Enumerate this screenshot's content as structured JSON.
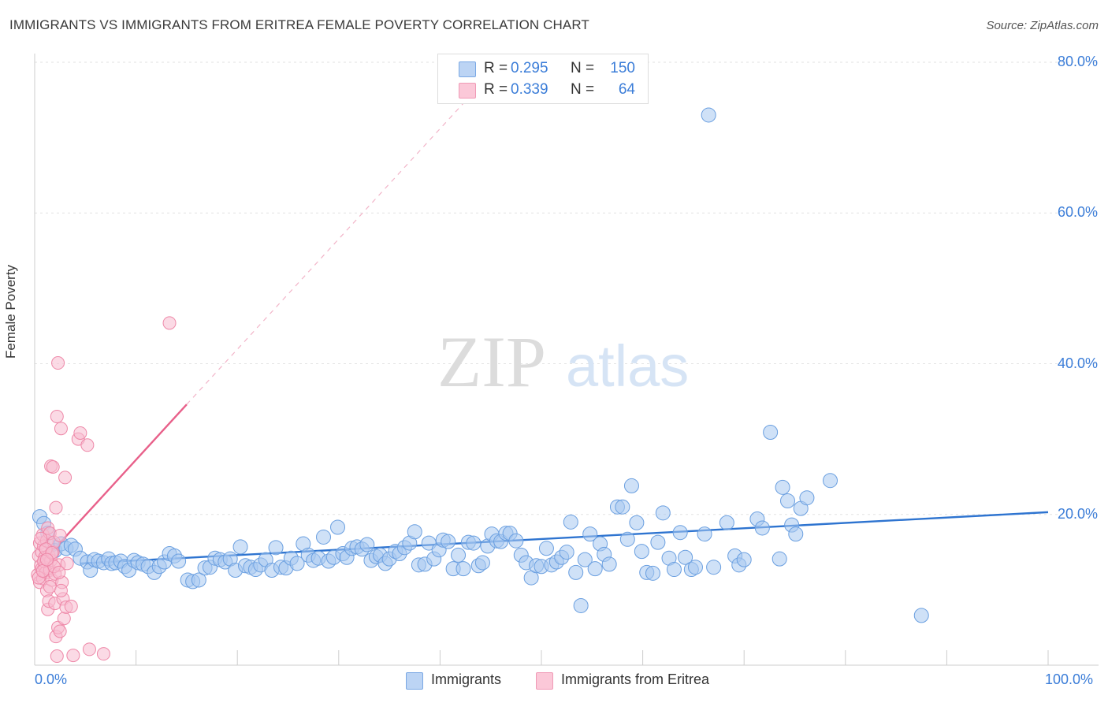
{
  "title": "IMMIGRANTS VS IMMIGRANTS FROM ERITREA FEMALE POVERTY CORRELATION CHART",
  "source": "Source: ZipAtlas.com",
  "watermark": {
    "zip": "ZIP",
    "atlas": "atlas"
  },
  "legend": {
    "rows": [
      {
        "r_label": "R =",
        "r_value": "0.295",
        "n_label": "N =",
        "n_value": "150"
      },
      {
        "r_label": "R =",
        "r_value": "0.339",
        "n_label": "N =",
        "n_value": "64"
      }
    ]
  },
  "bottom_legend": [
    "Immigrants",
    "Immigrants from Eritrea"
  ],
  "axis": {
    "ylabel": "Female Poverty",
    "x_min_label": "0.0%",
    "x_max_label": "100.0%",
    "y_tick_labels": [
      "80.0%",
      "60.0%",
      "40.0%",
      "20.0%"
    ]
  },
  "colors": {
    "blue_fill": "#a8c8f0",
    "blue_stroke": "#6a9fe0",
    "blue_line": "#2e74d0",
    "pink_fill": "#f8bcd0",
    "pink_stroke": "#ee88a8",
    "pink_line": "#e8608a",
    "axis_text": "#3b7dd8"
  },
  "chart_data": {
    "type": "scatter",
    "xlim": [
      0,
      100
    ],
    "ylim": [
      0,
      80
    ],
    "y_ticks": [
      20,
      40,
      60,
      80
    ],
    "grid": true,
    "legend_placement": "top-center",
    "series": [
      {
        "name": "Immigrants",
        "color": "#a8c8f0",
        "trend": {
          "x": [
            4.5,
            100
          ],
          "y": [
            13.5,
            20.3
          ]
        },
        "points": [
          [
            0.5,
            19.7
          ],
          [
            0.9,
            18.8
          ],
          [
            1.3,
            17.5
          ],
          [
            1.7,
            16.0
          ],
          [
            2.0,
            15.2
          ],
          [
            2.6,
            16.1
          ],
          [
            3.1,
            15.5
          ],
          [
            3.6,
            15.9
          ],
          [
            4.0,
            15.4
          ],
          [
            4.5,
            14.2
          ],
          [
            5.2,
            13.7
          ],
          [
            5.5,
            12.6
          ],
          [
            5.9,
            14.0
          ],
          [
            6.3,
            13.8
          ],
          [
            6.8,
            13.6
          ],
          [
            7.3,
            14.1
          ],
          [
            7.6,
            13.5
          ],
          [
            8.0,
            13.6
          ],
          [
            8.5,
            13.8
          ],
          [
            8.9,
            13.1
          ],
          [
            9.3,
            12.6
          ],
          [
            9.8,
            13.9
          ],
          [
            10.2,
            13.6
          ],
          [
            10.7,
            13.4
          ],
          [
            11.2,
            13.1
          ],
          [
            11.8,
            12.3
          ],
          [
            12.3,
            13.1
          ],
          [
            12.8,
            13.7
          ],
          [
            13.3,
            14.8
          ],
          [
            13.8,
            14.5
          ],
          [
            14.2,
            13.8
          ],
          [
            15.1,
            11.3
          ],
          [
            15.6,
            11.1
          ],
          [
            16.2,
            11.3
          ],
          [
            16.8,
            12.9
          ],
          [
            17.3,
            13.0
          ],
          [
            17.8,
            14.2
          ],
          [
            18.3,
            14.0
          ],
          [
            18.8,
            13.7
          ],
          [
            19.3,
            14.1
          ],
          [
            19.8,
            12.6
          ],
          [
            20.3,
            15.7
          ],
          [
            20.8,
            13.2
          ],
          [
            21.3,
            13.0
          ],
          [
            21.8,
            12.7
          ],
          [
            22.3,
            13.3
          ],
          [
            22.8,
            14.0
          ],
          [
            23.4,
            12.6
          ],
          [
            23.8,
            15.6
          ],
          [
            24.3,
            13.0
          ],
          [
            24.8,
            12.9
          ],
          [
            25.3,
            14.2
          ],
          [
            25.9,
            13.5
          ],
          [
            26.5,
            16.1
          ],
          [
            27.0,
            14.6
          ],
          [
            27.5,
            13.9
          ],
          [
            28.0,
            14.2
          ],
          [
            28.5,
            17.0
          ],
          [
            29.0,
            13.8
          ],
          [
            29.5,
            14.3
          ],
          [
            29.9,
            18.3
          ],
          [
            30.4,
            14.8
          ],
          [
            30.8,
            14.3
          ],
          [
            31.3,
            15.5
          ],
          [
            31.8,
            15.7
          ],
          [
            32.3,
            15.4
          ],
          [
            32.8,
            16.0
          ],
          [
            33.2,
            13.9
          ],
          [
            33.7,
            14.4
          ],
          [
            34.1,
            14.6
          ],
          [
            34.6,
            13.5
          ],
          [
            35.0,
            14.1
          ],
          [
            35.6,
            15.1
          ],
          [
            36.0,
            14.8
          ],
          [
            36.5,
            15.6
          ],
          [
            37.0,
            16.2
          ],
          [
            37.5,
            17.7
          ],
          [
            37.9,
            13.3
          ],
          [
            38.5,
            13.4
          ],
          [
            38.9,
            16.2
          ],
          [
            39.4,
            14.1
          ],
          [
            39.9,
            15.3
          ],
          [
            40.3,
            16.6
          ],
          [
            40.8,
            16.4
          ],
          [
            41.3,
            12.8
          ],
          [
            41.8,
            14.6
          ],
          [
            42.3,
            12.8
          ],
          [
            42.8,
            16.3
          ],
          [
            43.3,
            16.2
          ],
          [
            43.8,
            13.2
          ],
          [
            44.2,
            13.6
          ],
          [
            44.7,
            15.8
          ],
          [
            45.1,
            17.4
          ],
          [
            45.6,
            16.5
          ],
          [
            46.0,
            16.4
          ],
          [
            46.5,
            17.5
          ],
          [
            46.9,
            17.5
          ],
          [
            47.5,
            16.5
          ],
          [
            48.0,
            14.6
          ],
          [
            48.5,
            13.6
          ],
          [
            49.0,
            11.6
          ],
          [
            49.5,
            13.2
          ],
          [
            50.0,
            13.1
          ],
          [
            50.5,
            15.5
          ],
          [
            51.0,
            13.3
          ],
          [
            51.5,
            13.7
          ],
          [
            52.0,
            14.3
          ],
          [
            52.5,
            15.0
          ],
          [
            52.9,
            19.0
          ],
          [
            53.4,
            12.3
          ],
          [
            53.9,
            7.9
          ],
          [
            54.3,
            14.0
          ],
          [
            54.8,
            17.4
          ],
          [
            55.3,
            12.8
          ],
          [
            55.8,
            16.1
          ],
          [
            56.2,
            14.7
          ],
          [
            56.7,
            13.4
          ],
          [
            57.5,
            21.0
          ],
          [
            58.0,
            21.0
          ],
          [
            58.5,
            16.7
          ],
          [
            58.9,
            23.8
          ],
          [
            59.4,
            18.9
          ],
          [
            59.9,
            15.1
          ],
          [
            60.4,
            12.3
          ],
          [
            61.0,
            12.2
          ],
          [
            61.5,
            16.3
          ],
          [
            62.0,
            20.2
          ],
          [
            62.6,
            14.2
          ],
          [
            63.1,
            12.7
          ],
          [
            63.7,
            17.6
          ],
          [
            64.2,
            14.3
          ],
          [
            64.8,
            12.7
          ],
          [
            65.2,
            13.0
          ],
          [
            66.1,
            17.4
          ],
          [
            66.5,
            73.0
          ],
          [
            67.0,
            13.0
          ],
          [
            68.3,
            18.9
          ],
          [
            69.1,
            14.5
          ],
          [
            69.5,
            13.3
          ],
          [
            70.0,
            14.0
          ],
          [
            71.3,
            19.4
          ],
          [
            71.8,
            18.2
          ],
          [
            72.6,
            30.9
          ],
          [
            73.5,
            14.1
          ],
          [
            73.8,
            23.6
          ],
          [
            74.3,
            21.8
          ],
          [
            74.7,
            18.6
          ],
          [
            75.1,
            17.4
          ],
          [
            75.6,
            20.8
          ],
          [
            76.2,
            22.2
          ],
          [
            78.5,
            24.5
          ],
          [
            87.5,
            6.6
          ]
        ]
      },
      {
        "name": "Immigrants from Eritrea",
        "color": "#f8bcd0",
        "trend": {
          "x": [
            0.3,
            15.0
          ],
          "y": [
            13.0,
            34.6
          ]
        },
        "trend_dashed": {
          "x": [
            15.0,
            45.0
          ],
          "y": [
            34.6,
            78.5
          ]
        },
        "points": [
          [
            0.3,
            12.0
          ],
          [
            0.4,
            14.5
          ],
          [
            0.5,
            16.2
          ],
          [
            0.5,
            11.0
          ],
          [
            0.6,
            13.2
          ],
          [
            0.7,
            15.0
          ],
          [
            0.7,
            12.8
          ],
          [
            0.8,
            17.3
          ],
          [
            0.8,
            11.5
          ],
          [
            0.9,
            15.8
          ],
          [
            1.0,
            13.0
          ],
          [
            1.0,
            14.3
          ],
          [
            1.1,
            12.3
          ],
          [
            1.2,
            16.5
          ],
          [
            1.2,
            9.9
          ],
          [
            1.3,
            18.2
          ],
          [
            1.3,
            7.4
          ],
          [
            1.4,
            14.5
          ],
          [
            1.4,
            8.5
          ],
          [
            1.5,
            12.6
          ],
          [
            1.5,
            17.5
          ],
          [
            1.6,
            13.9
          ],
          [
            1.6,
            26.4
          ],
          [
            1.7,
            11.3
          ],
          [
            1.8,
            15.0
          ],
          [
            1.8,
            26.3
          ],
          [
            1.9,
            16.3
          ],
          [
            2.0,
            8.2
          ],
          [
            2.0,
            12.1
          ],
          [
            2.1,
            3.8
          ],
          [
            2.1,
            20.9
          ],
          [
            2.2,
            1.2
          ],
          [
            2.2,
            33.0
          ],
          [
            2.3,
            5.0
          ],
          [
            2.3,
            40.1
          ],
          [
            2.4,
            13.3
          ],
          [
            2.5,
            17.2
          ],
          [
            2.5,
            4.5
          ],
          [
            2.6,
            31.4
          ],
          [
            2.7,
            11.0
          ],
          [
            2.8,
            8.8
          ],
          [
            2.9,
            6.2
          ],
          [
            3.0,
            24.9
          ],
          [
            3.1,
            7.7
          ],
          [
            3.2,
            13.5
          ],
          [
            3.6,
            7.8
          ],
          [
            3.8,
            1.3
          ],
          [
            4.3,
            30.0
          ],
          [
            4.5,
            30.8
          ],
          [
            5.2,
            29.2
          ],
          [
            5.4,
            2.1
          ],
          [
            6.8,
            1.5
          ],
          [
            13.3,
            45.4
          ],
          [
            0.4,
            11.6
          ],
          [
            0.6,
            16.8
          ],
          [
            0.9,
            13.8
          ],
          [
            1.1,
            15.4
          ],
          [
            1.5,
            10.4
          ],
          [
            1.7,
            14.9
          ],
          [
            1.9,
            13.1
          ],
          [
            2.4,
            12.3
          ],
          [
            2.6,
            9.9
          ],
          [
            0.8,
            12.5
          ],
          [
            1.2,
            14.0
          ]
        ]
      }
    ]
  }
}
